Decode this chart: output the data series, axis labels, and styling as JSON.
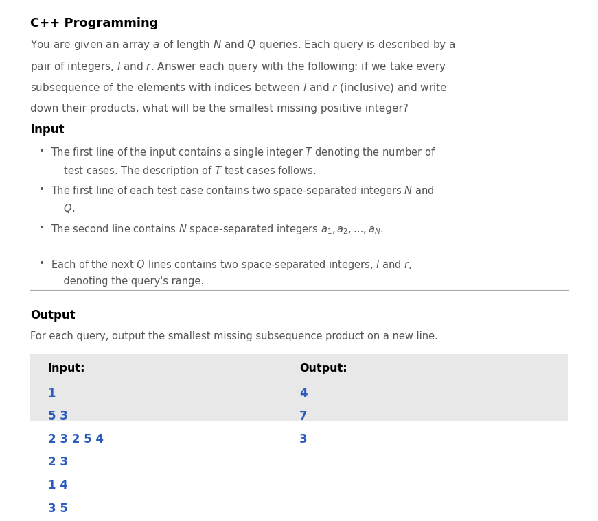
{
  "title": "C++ Programming",
  "bg_color": "#ffffff",
  "fig_width": 8.52,
  "fig_height": 7.32,
  "output_heading": "Output",
  "output_text": "For each query, output the smallest missing subsequence product on a new line.",
  "input_label": "Input:",
  "output_label": "Output:",
  "input_data": [
    "1",
    "5 3",
    "2 3 2 5 4",
    "2 3",
    "1 4",
    "3 5"
  ],
  "output_data": [
    "4",
    "7",
    "3"
  ],
  "box_bg": "#e8e8e8",
  "code_color": "#2b5abf",
  "label_color": "#000000",
  "title_color": "#000000",
  "body_color": "#555555",
  "heading_color": "#000000",
  "separator_color": "#aaaaaa"
}
